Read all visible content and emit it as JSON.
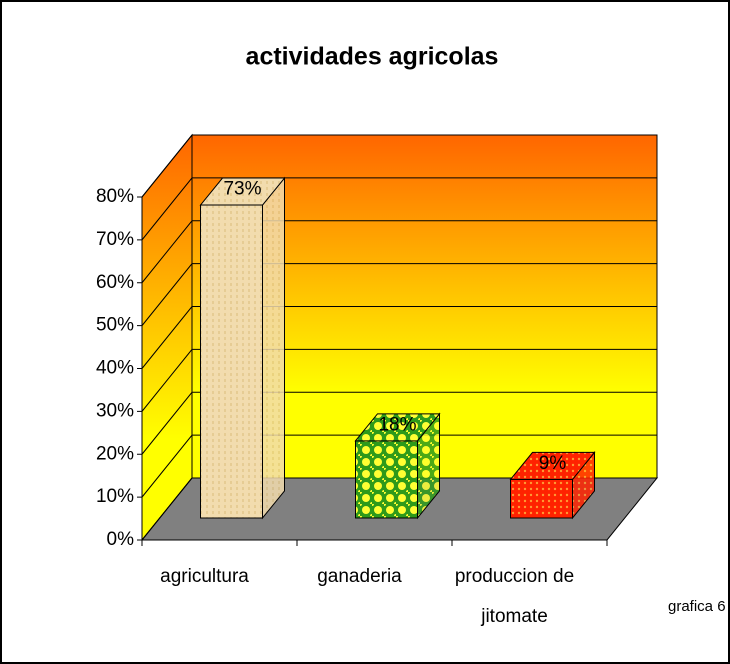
{
  "chart_data": {
    "type": "bar3d",
    "title": "actividades agricolas",
    "categories": [
      "agricultura",
      "ganaderia",
      "produccion de jitomate"
    ],
    "values": [
      73,
      18,
      9
    ],
    "value_labels": [
      "73%",
      "18%",
      "9%"
    ],
    "ylim": [
      0,
      80
    ],
    "yticks": [
      {
        "value": 0,
        "label": "0%"
      },
      {
        "value": 10,
        "label": "10%"
      },
      {
        "value": 20,
        "label": "20%"
      },
      {
        "value": 30,
        "label": "30%"
      },
      {
        "value": 40,
        "label": "40%"
      },
      {
        "value": 50,
        "label": "50%"
      },
      {
        "value": 60,
        "label": "60%"
      },
      {
        "value": 70,
        "label": "70%"
      },
      {
        "value": 80,
        "label": "80%"
      }
    ],
    "grid": true,
    "annotation": "grafica 6"
  }
}
